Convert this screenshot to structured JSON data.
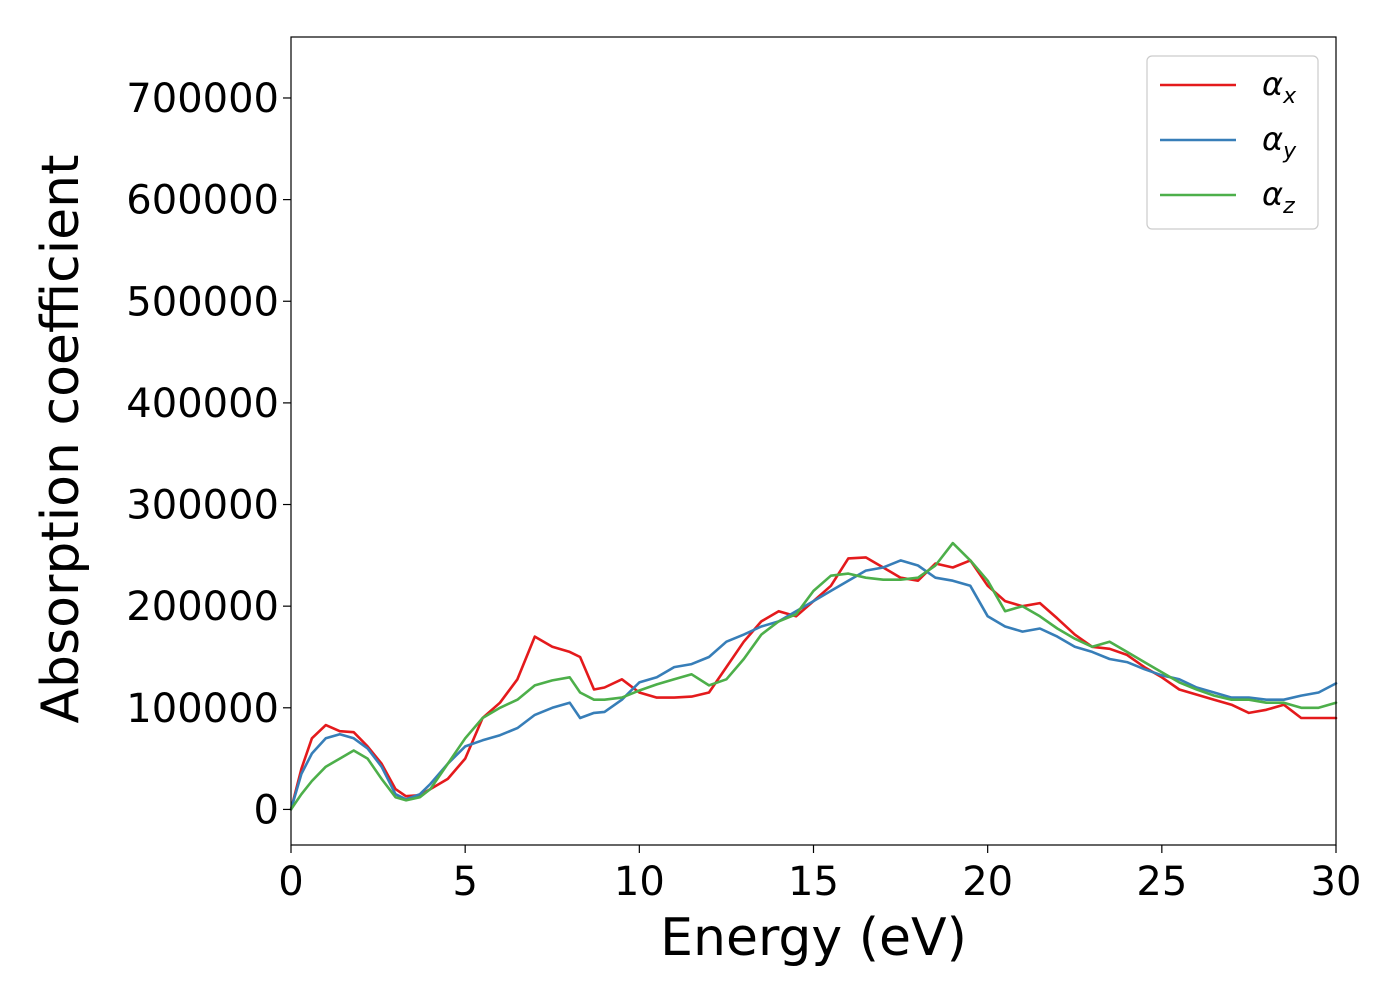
{
  "chart_data": {
    "type": "line",
    "title": "",
    "xlabel": "Energy (eV)",
    "ylabel": "Absorption coefficient",
    "xlim": [
      0,
      30
    ],
    "ylim": [
      -35000,
      760000
    ],
    "xticks": [
      0,
      5,
      10,
      15,
      20,
      25,
      30
    ],
    "xtick_labels": [
      "0",
      "5",
      "10",
      "15",
      "20",
      "25",
      "30"
    ],
    "yticks": [
      0,
      100000,
      200000,
      300000,
      400000,
      500000,
      600000,
      700000
    ],
    "ytick_labels": [
      "0",
      "100000",
      "200000",
      "300000",
      "400000",
      "500000",
      "600000",
      "700000"
    ],
    "grid": false,
    "legend_position": "top-right",
    "series": [
      {
        "name": "α",
        "subscript": "x",
        "color": "#e41a1c",
        "x": [
          0,
          0.3,
          0.6,
          1.0,
          1.4,
          1.8,
          2.2,
          2.6,
          3.0,
          3.3,
          3.7,
          4.0,
          4.5,
          5.0,
          5.5,
          6.0,
          6.5,
          7.0,
          7.5,
          8.0,
          8.3,
          8.7,
          9.0,
          9.5,
          10.0,
          10.5,
          11.0,
          11.5,
          12.0,
          12.5,
          13.0,
          13.5,
          14.0,
          14.5,
          15.0,
          15.5,
          16.0,
          16.5,
          17.0,
          17.5,
          18.0,
          18.5,
          19.0,
          19.5,
          20.0,
          20.5,
          21.0,
          21.5,
          22.0,
          22.5,
          23.0,
          23.5,
          24.0,
          24.5,
          25.0,
          25.5,
          26.0,
          26.5,
          27.0,
          27.5,
          28.0,
          28.5,
          29.0,
          29.5,
          30.0
        ],
        "y": [
          0,
          40000,
          70000,
          83000,
          77000,
          76000,
          62000,
          45000,
          20000,
          13000,
          14000,
          20000,
          30000,
          50000,
          90000,
          105000,
          128000,
          170000,
          160000,
          155000,
          150000,
          118000,
          120000,
          128000,
          115000,
          110000,
          110000,
          111000,
          115000,
          140000,
          165000,
          185000,
          195000,
          190000,
          205000,
          220000,
          247000,
          248000,
          238000,
          228000,
          225000,
          242000,
          238000,
          245000,
          220000,
          205000,
          200000,
          203000,
          188000,
          172000,
          160000,
          158000,
          152000,
          140000,
          130000,
          118000,
          113000,
          108000,
          103000,
          95000,
          98000,
          103000,
          90000,
          90000,
          90000
        ]
      },
      {
        "name": "α",
        "subscript": "y",
        "color": "#377eb8",
        "x": [
          0,
          0.3,
          0.6,
          1.0,
          1.4,
          1.8,
          2.2,
          2.6,
          3.0,
          3.3,
          3.7,
          4.0,
          4.5,
          5.0,
          5.5,
          6.0,
          6.5,
          7.0,
          7.5,
          8.0,
          8.3,
          8.7,
          9.0,
          9.5,
          10.0,
          10.5,
          11.0,
          11.5,
          12.0,
          12.5,
          13.0,
          13.5,
          14.0,
          14.5,
          15.0,
          15.5,
          16.0,
          16.5,
          17.0,
          17.5,
          18.0,
          18.5,
          19.0,
          19.5,
          20.0,
          20.5,
          21.0,
          21.5,
          22.0,
          22.5,
          23.0,
          23.5,
          24.0,
          24.5,
          25.0,
          25.5,
          26.0,
          26.5,
          27.0,
          27.5,
          28.0,
          28.5,
          29.0,
          29.5,
          30.0
        ],
        "y": [
          0,
          35000,
          55000,
          70000,
          74000,
          70000,
          60000,
          42000,
          15000,
          10000,
          15000,
          25000,
          45000,
          62000,
          68000,
          73000,
          80000,
          93000,
          100000,
          105000,
          90000,
          95000,
          96000,
          108000,
          125000,
          130000,
          140000,
          143000,
          150000,
          165000,
          172000,
          180000,
          185000,
          195000,
          205000,
          215000,
          225000,
          235000,
          238000,
          245000,
          240000,
          228000,
          225000,
          220000,
          190000,
          180000,
          175000,
          178000,
          170000,
          160000,
          155000,
          148000,
          145000,
          138000,
          132000,
          128000,
          120000,
          115000,
          110000,
          110000,
          108000,
          108000,
          112000,
          115000,
          124000
        ]
      },
      {
        "name": "α",
        "subscript": "z",
        "color": "#4daf4a",
        "x": [
          0,
          0.3,
          0.6,
          1.0,
          1.4,
          1.8,
          2.2,
          2.6,
          3.0,
          3.3,
          3.7,
          4.0,
          4.5,
          5.0,
          5.5,
          6.0,
          6.5,
          7.0,
          7.5,
          8.0,
          8.3,
          8.7,
          9.0,
          9.5,
          10.0,
          10.5,
          11.0,
          11.5,
          12.0,
          12.5,
          13.0,
          13.5,
          14.0,
          14.5,
          15.0,
          15.5,
          16.0,
          16.5,
          17.0,
          17.5,
          18.0,
          18.5,
          19.0,
          19.5,
          20.0,
          20.5,
          21.0,
          21.5,
          22.0,
          22.5,
          23.0,
          23.5,
          24.0,
          24.5,
          25.0,
          25.5,
          26.0,
          26.5,
          27.0,
          27.5,
          28.0,
          28.5,
          29.0,
          29.5,
          30.0
        ],
        "y": [
          0,
          15000,
          28000,
          42000,
          50000,
          58000,
          50000,
          30000,
          12000,
          9000,
          12000,
          20000,
          45000,
          70000,
          90000,
          100000,
          108000,
          122000,
          127000,
          130000,
          115000,
          108000,
          108000,
          110000,
          117000,
          123000,
          128000,
          133000,
          122000,
          128000,
          148000,
          172000,
          185000,
          192000,
          215000,
          230000,
          232000,
          228000,
          226000,
          226000,
          228000,
          240000,
          262000,
          245000,
          225000,
          195000,
          200000,
          190000,
          178000,
          168000,
          160000,
          165000,
          155000,
          145000,
          135000,
          125000,
          118000,
          112000,
          108000,
          108000,
          105000,
          105000,
          100000,
          100000,
          105000
        ]
      }
    ]
  }
}
